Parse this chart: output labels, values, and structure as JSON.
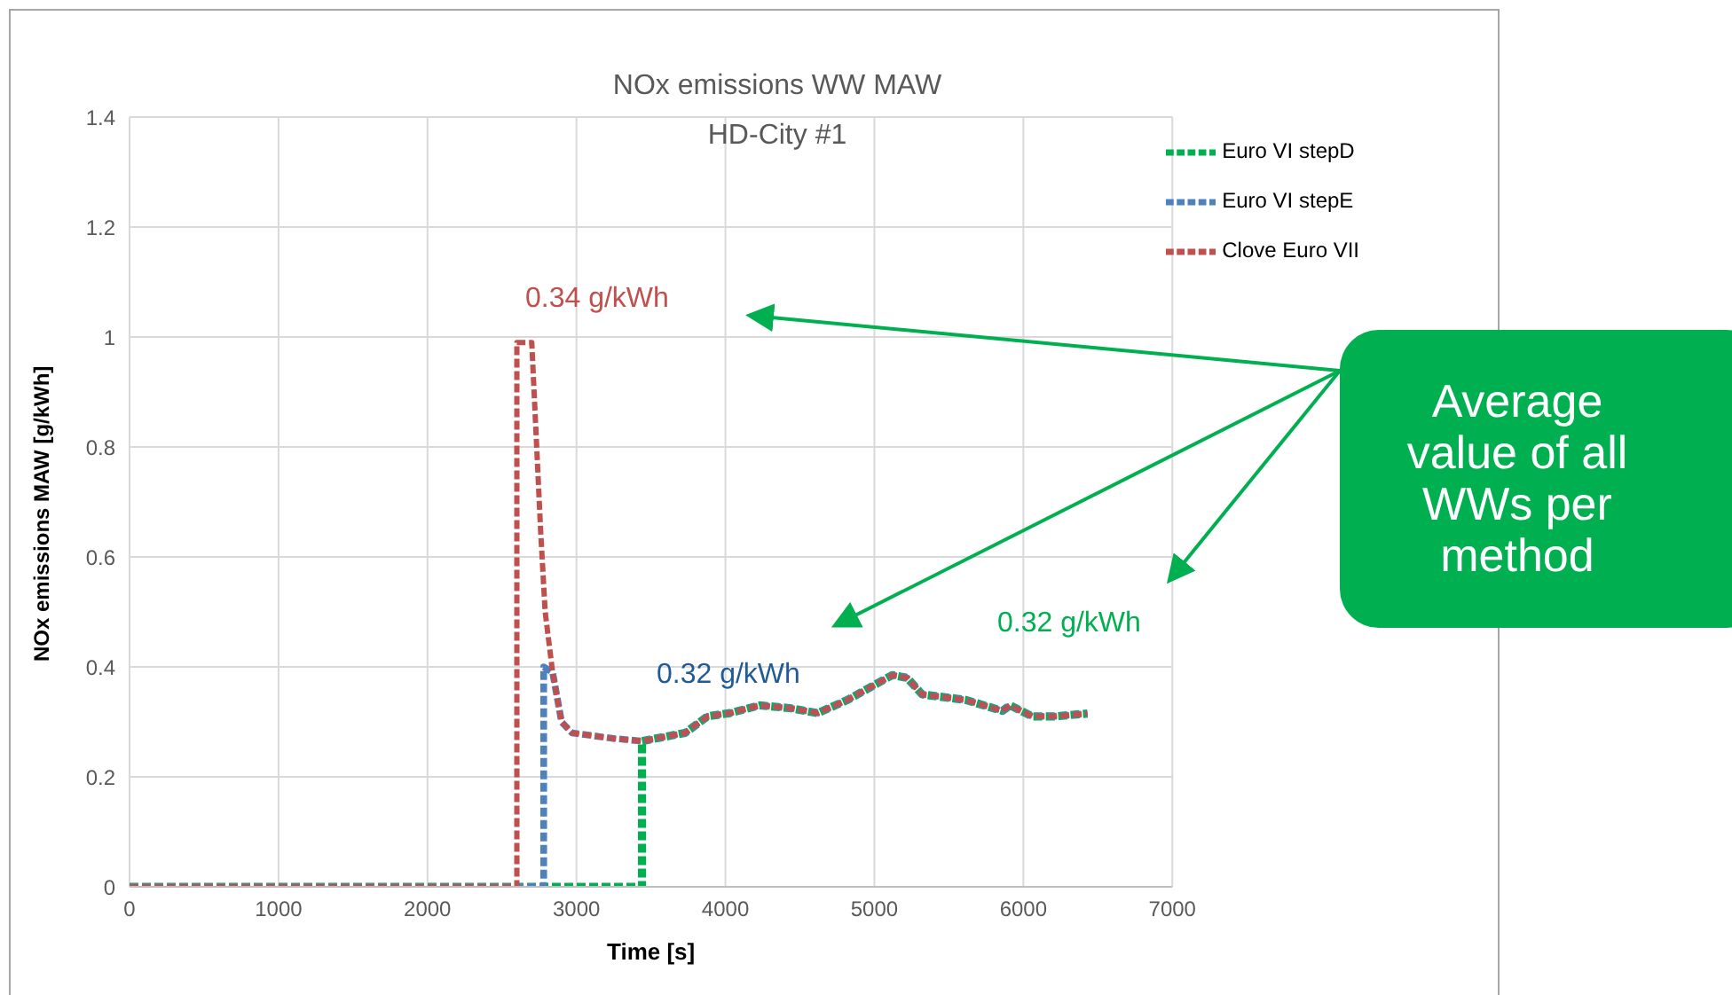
{
  "chart_data": {
    "type": "line",
    "title": "NOx emissions WW MAW",
    "subtitle": "HD-City #1",
    "xlabel": "Time [s]",
    "ylabel": "NOx emissions MAW [g/kWh]",
    "xlim": [
      0,
      7000
    ],
    "xticks": [
      0,
      1000,
      2000,
      3000,
      4000,
      5000,
      6000,
      7000
    ],
    "ylim": [
      0,
      1.4
    ],
    "yticks": [
      0,
      0.2,
      0.4,
      0.6,
      0.8,
      1,
      1.2,
      1.4
    ],
    "grid": true,
    "legend": "top right",
    "line_style": "dashed",
    "marker": "none",
    "annotations": [
      "0.34 g/kWh",
      "0.32 g/kWh",
      "0.32 g/kWh",
      "Average value of all WWs per method"
    ],
    "series": [
      {
        "name": "Euro VI stepD",
        "color": "#00b050",
        "x": [
          0,
          3440,
          3440,
          3730,
          3880,
          4030,
          4230,
          4430,
          4620,
          4820,
          5020,
          5120,
          5220,
          5320,
          5610,
          5860,
          5910,
          6060,
          6210,
          6430
        ],
        "values": [
          0,
          0,
          0.265,
          0.28,
          0.31,
          0.316,
          0.33,
          0.325,
          0.316,
          0.34,
          0.37,
          0.385,
          0.38,
          0.35,
          0.34,
          0.32,
          0.33,
          0.31,
          0.31,
          0.315
        ]
      },
      {
        "name": "Euro VI stepE",
        "color": "#4f81bd",
        "x": [
          0,
          2780,
          2780,
          2840,
          2900,
          2970,
          3240,
          3440,
          3730,
          3880,
          4030,
          4230,
          4430,
          4620,
          4820,
          5020,
          5120,
          5220,
          5320,
          5610,
          5860,
          5910,
          6060,
          6210,
          6430
        ],
        "values": [
          0,
          0,
          0.4,
          0.39,
          0.3,
          0.28,
          0.27,
          0.265,
          0.28,
          0.31,
          0.316,
          0.33,
          0.325,
          0.316,
          0.34,
          0.37,
          0.385,
          0.38,
          0.35,
          0.34,
          0.32,
          0.33,
          0.31,
          0.31,
          0.315
        ]
      },
      {
        "name": "Clove Euro VII",
        "color": "#c0504d",
        "x": [
          0,
          2600,
          2600,
          2700,
          2760,
          2790,
          2840,
          2900,
          2970,
          3240,
          3440,
          3730,
          3880,
          4030,
          4230,
          4430,
          4620,
          4820,
          5020,
          5120,
          5220,
          5320,
          5610,
          5860,
          5910,
          6060,
          6210,
          6430
        ],
        "values": [
          0,
          0,
          0.99,
          0.99,
          0.645,
          0.5,
          0.39,
          0.3,
          0.28,
          0.27,
          0.265,
          0.28,
          0.31,
          0.316,
          0.33,
          0.325,
          0.316,
          0.34,
          0.37,
          0.385,
          0.38,
          0.35,
          0.34,
          0.32,
          0.33,
          0.31,
          0.31,
          0.315
        ]
      }
    ]
  }
}
